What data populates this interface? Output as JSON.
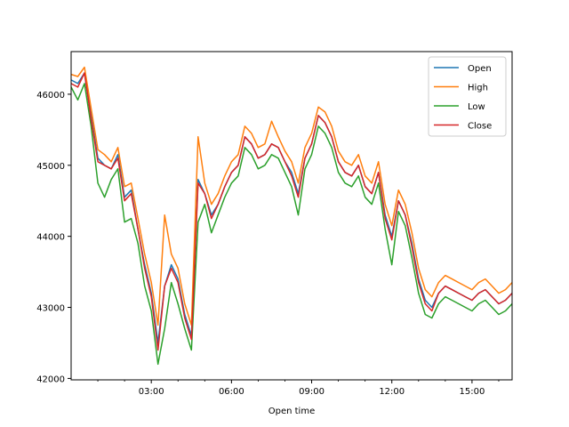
{
  "chart_data": {
    "type": "line",
    "title": "",
    "xlabel": "Open time",
    "ylabel": "",
    "x_unit": "hours",
    "xlim": [
      0,
      16.5
    ],
    "ylim": [
      41980,
      46600
    ],
    "x_ticks": [
      3,
      6,
      9,
      12,
      15
    ],
    "x_tick_labels": [
      "03:00",
      "06:00",
      "09:00",
      "12:00",
      "15:00"
    ],
    "y_ticks": [
      42000,
      43000,
      44000,
      45000,
      46000
    ],
    "y_tick_labels": [
      "42000",
      "43000",
      "44000",
      "45000",
      "46000"
    ],
    "legend_position": "top-right",
    "grid": false,
    "x": [
      0.0,
      0.25,
      0.5,
      0.75,
      1.0,
      1.25,
      1.5,
      1.75,
      2.0,
      2.25,
      2.5,
      2.75,
      3.0,
      3.25,
      3.5,
      3.75,
      4.0,
      4.25,
      4.5,
      4.75,
      5.0,
      5.25,
      5.5,
      5.75,
      6.0,
      6.25,
      6.5,
      6.75,
      7.0,
      7.25,
      7.5,
      7.75,
      8.0,
      8.25,
      8.5,
      8.75,
      9.0,
      9.25,
      9.5,
      9.75,
      10.0,
      10.25,
      10.5,
      10.75,
      11.0,
      11.25,
      11.5,
      11.75,
      12.0,
      12.25,
      12.5,
      12.75,
      13.0,
      13.25,
      13.5,
      13.75,
      14.0,
      14.25,
      14.5,
      14.75,
      15.0,
      15.25,
      15.5,
      15.75,
      16.0,
      16.25,
      16.5
    ],
    "series": [
      {
        "name": "Open",
        "color": "#1f77b4",
        "values": [
          46200,
          46150,
          46300,
          45700,
          45100,
          45000,
          44950,
          45150,
          44550,
          44650,
          44100,
          43600,
          43200,
          42500,
          43300,
          43600,
          43400,
          42900,
          42600,
          44800,
          44600,
          44300,
          44450,
          44700,
          44900,
          45000,
          45400,
          45300,
          45100,
          45150,
          45300,
          45250,
          45050,
          44900,
          44600,
          45100,
          45300,
          45700,
          45600,
          45400,
          45050,
          44900,
          44850,
          45000,
          44700,
          44600,
          44900,
          44300,
          44000,
          44500,
          44300,
          43900,
          43400,
          43100,
          43000,
          43200,
          43300,
          43250,
          43200,
          43150,
          43100,
          43200,
          43250,
          43150,
          43050,
          43100,
          43200
        ]
      },
      {
        "name": "High",
        "color": "#ff7f0e",
        "values": [
          46280,
          46250,
          46380,
          45800,
          45220,
          45150,
          45050,
          45250,
          44700,
          44750,
          44250,
          43750,
          43350,
          42750,
          44300,
          43750,
          43550,
          43050,
          42750,
          45400,
          44750,
          44450,
          44600,
          44850,
          45050,
          45150,
          45550,
          45450,
          45250,
          45300,
          45620,
          45400,
          45200,
          45050,
          44750,
          45250,
          45450,
          45820,
          45750,
          45550,
          45200,
          45050,
          45000,
          45150,
          44850,
          44750,
          45050,
          44450,
          44150,
          44650,
          44450,
          44050,
          43550,
          43250,
          43150,
          43350,
          43450,
          43400,
          43350,
          43300,
          43250,
          43350,
          43400,
          43300,
          43200,
          43250,
          43350
        ]
      },
      {
        "name": "Low",
        "color": "#2ca02c",
        "values": [
          46100,
          45920,
          46150,
          45550,
          44750,
          44550,
          44800,
          44950,
          44200,
          44250,
          43900,
          43300,
          42950,
          42200,
          42700,
          43350,
          43050,
          42700,
          42400,
          44200,
          44450,
          44050,
          44300,
          44550,
          44750,
          44850,
          45250,
          45150,
          44950,
          45000,
          45150,
          45100,
          44900,
          44700,
          44300,
          44950,
          45150,
          45550,
          45450,
          45250,
          44900,
          44750,
          44700,
          44850,
          44550,
          44450,
          44750,
          44100,
          43600,
          44350,
          44150,
          43700,
          43200,
          42900,
          42850,
          43050,
          43150,
          43100,
          43050,
          43000,
          42950,
          43050,
          43100,
          43000,
          42900,
          42950,
          43050
        ]
      },
      {
        "name": "Close",
        "color": "#d62728",
        "values": [
          46150,
          46100,
          46300,
          45650,
          45050,
          45000,
          44950,
          45100,
          44500,
          44600,
          44100,
          43550,
          43150,
          42400,
          43300,
          43550,
          43350,
          42850,
          42550,
          44750,
          44600,
          44250,
          44450,
          44700,
          44900,
          45000,
          45400,
          45300,
          45100,
          45150,
          45300,
          45250,
          45050,
          44850,
          44550,
          45100,
          45300,
          45700,
          45600,
          45400,
          45050,
          44900,
          44850,
          45000,
          44700,
          44600,
          44900,
          44250,
          43950,
          44500,
          44300,
          43850,
          43350,
          43050,
          42950,
          43200,
          43300,
          43250,
          43200,
          43150,
          43100,
          43200,
          43250,
          43150,
          43050,
          43100,
          43200
        ]
      }
    ]
  }
}
